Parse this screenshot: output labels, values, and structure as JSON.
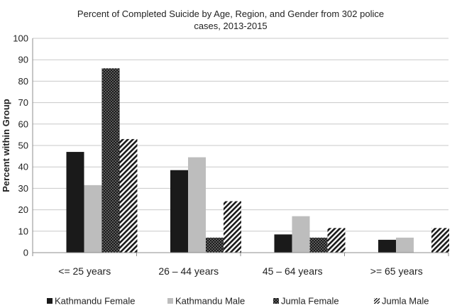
{
  "chart_data": {
    "type": "bar",
    "title_line1": "Percent of Completed Suicide by Age, Region, and Gender from 302 police",
    "title_line2": "cases, 2013-2015",
    "xlabel": "",
    "ylabel": "Percent within Group",
    "ylim": [
      0,
      100
    ],
    "yticks": [
      "0",
      "10",
      "20",
      "30",
      "40",
      "50",
      "60",
      "70",
      "80",
      "90",
      "100"
    ],
    "grid": true,
    "legend_position": "bottom",
    "categories": [
      "<= 25 years",
      "26 – 44 years",
      "45 – 64 years",
      ">= 65 years"
    ],
    "series": [
      {
        "name": "Kathmandu Female",
        "values": [
          47,
          38.5,
          8.5,
          6
        ],
        "color": "#1a1a1a",
        "pattern": "solid"
      },
      {
        "name": "Kathmandu Male",
        "values": [
          31.5,
          44.5,
          17,
          7
        ],
        "color": "#bdbdbd",
        "pattern": "solid"
      },
      {
        "name": "Jumla Female",
        "values": [
          86,
          7,
          7,
          0
        ],
        "color": "#1a1a1a",
        "pattern": "dotted"
      },
      {
        "name": "Jumla Male",
        "values": [
          53,
          24,
          11.5,
          11.5
        ],
        "color": "#1a1a1a",
        "pattern": "diagonal-hatch"
      }
    ]
  }
}
